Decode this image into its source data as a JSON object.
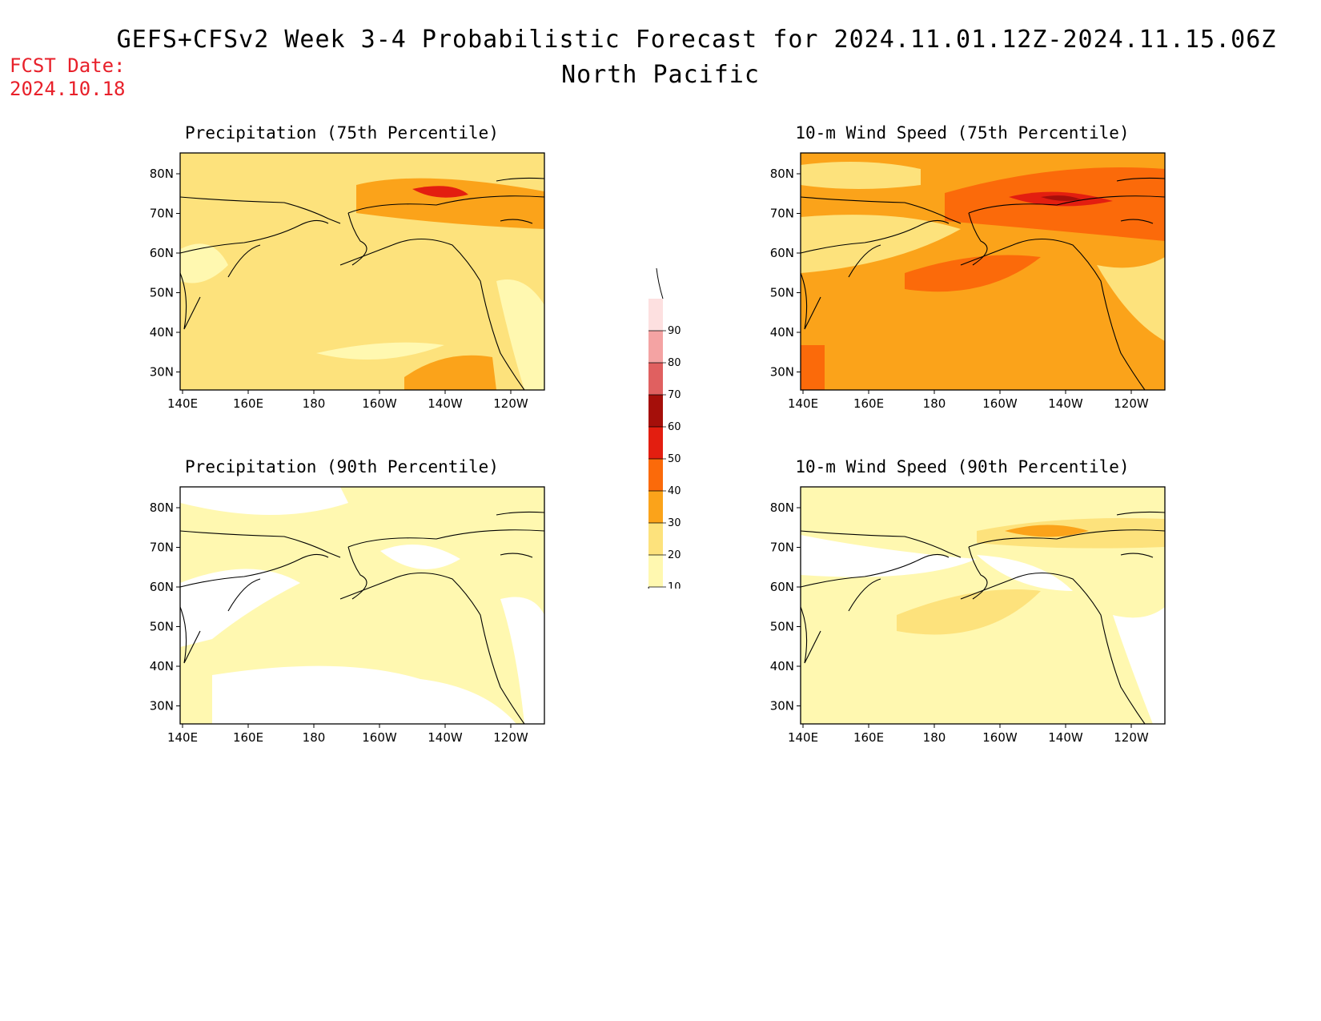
{
  "header": {
    "title": "GEFS+CFSv2 Week 3-4 Probabilistic Forecast for 2024.11.01.12Z-2024.11.15.06Z",
    "subtitle": "North Pacific",
    "fcst_label": "FCST Date:",
    "fcst_date": "2024.10.18"
  },
  "axes": {
    "x_ticks": [
      "140E",
      "160E",
      "180",
      "160W",
      "140W",
      "120W"
    ],
    "y_ticks": [
      "80N",
      "70N",
      "60N",
      "50N",
      "40N",
      "30N"
    ]
  },
  "colorbar": {
    "levels": [
      "10",
      "20",
      "30",
      "40",
      "50",
      "60",
      "70",
      "80",
      "90"
    ],
    "colors": [
      "#fff8b0",
      "#fde27c",
      "#fba31a",
      "#fb6a0a",
      "#e31e10",
      "#a50f0a",
      "#e06060",
      "#f4a3a3",
      "#fde0e0"
    ]
  },
  "panels": [
    {
      "title": "Precipitation (75th Percentile)",
      "base": "#fde27c",
      "accent": "#fba31a",
      "hot": "#e31e10"
    },
    {
      "title": "10-m Wind Speed (75th Percentile)",
      "base": "#fba31a",
      "accent": "#fb6a0a",
      "hot": "#a50f0a"
    },
    {
      "title": "Precipitation (90th Percentile)",
      "base": "#fff8b0",
      "accent": "#fff8b0",
      "hot": "#fde27c"
    },
    {
      "title": "10-m Wind Speed (90th Percentile)",
      "base": "#fff8b0",
      "accent": "#fde27c",
      "hot": "#fb6a0a"
    }
  ]
}
